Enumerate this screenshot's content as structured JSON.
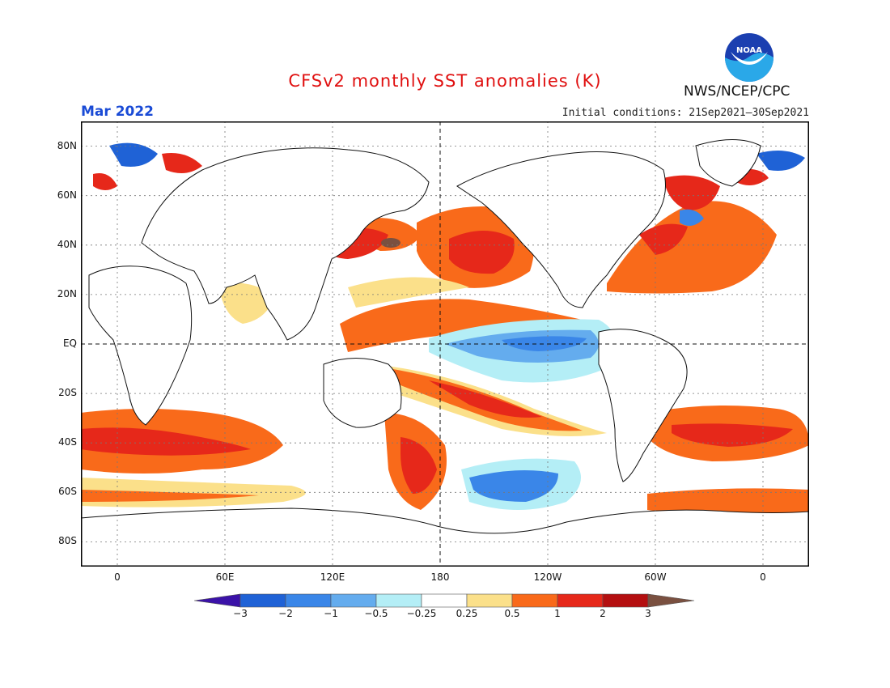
{
  "header": {
    "title": "CFSv2 monthly SST anomalies (K)",
    "month": "Mar 2022",
    "initial_conditions": "Initial conditions: 21Sep2021–30Sep2021",
    "agency": "NWS/NCEP/CPC",
    "logo_text": "NOAA"
  },
  "axes": {
    "lat_labels": [
      "80N",
      "60N",
      "40N",
      "20N",
      "EQ",
      "20S",
      "40S",
      "60S",
      "80S"
    ],
    "lon_labels": [
      "0",
      "60E",
      "120E",
      "180",
      "120W",
      "60W",
      "0"
    ]
  },
  "colorbar": {
    "labels": [
      "−3",
      "−2",
      "−1",
      "−0.5",
      "−0.25",
      "0.25",
      "0.5",
      "1",
      "2",
      "3"
    ],
    "colors": [
      "#3b12a8",
      "#1f62d6",
      "#3a86e8",
      "#64acee",
      "#b4eef6",
      "#ffffff",
      "#fbe08a",
      "#f96a1a",
      "#e6281a",
      "#b40f10",
      "#7a5040"
    ]
  }
}
